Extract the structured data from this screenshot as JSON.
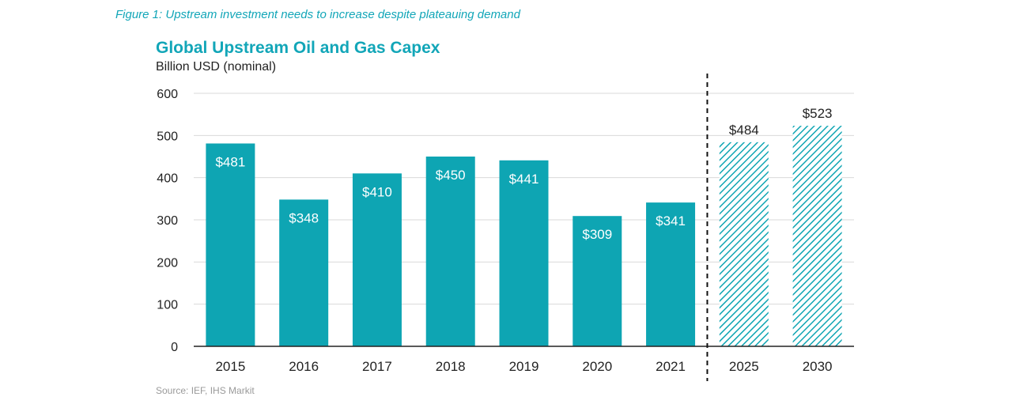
{
  "figure_caption": "Figure 1: Upstream investment needs to increase despite plateauing demand",
  "source_note": "Source: IEF, IHS Markit",
  "colors": {
    "bar": "#0ea5b3",
    "accent": "#12a6b8",
    "axis": "#222222",
    "grid": "#d9d9d9"
  },
  "chart_data": {
    "type": "bar",
    "title": "Global Upstream Oil and Gas Capex",
    "subtitle": "Billion USD (nominal)",
    "xlabel": "",
    "ylabel": "Billion USD (nominal)",
    "ylim": [
      0,
      600
    ],
    "yticks": [
      0,
      100,
      200,
      300,
      400,
      500,
      600
    ],
    "grid": true,
    "categories": [
      "2015",
      "2016",
      "2017",
      "2018",
      "2019",
      "2020",
      "2021",
      "2025",
      "2030"
    ],
    "values": [
      481,
      348,
      410,
      450,
      441,
      309,
      341,
      484,
      523
    ],
    "labels": [
      "$481",
      "$348",
      "$410",
      "$450",
      "$441",
      "$309",
      "$341",
      "$484",
      "$523"
    ],
    "projected": [
      false,
      false,
      false,
      false,
      false,
      false,
      false,
      true,
      true
    ],
    "divider_after": "2021"
  }
}
